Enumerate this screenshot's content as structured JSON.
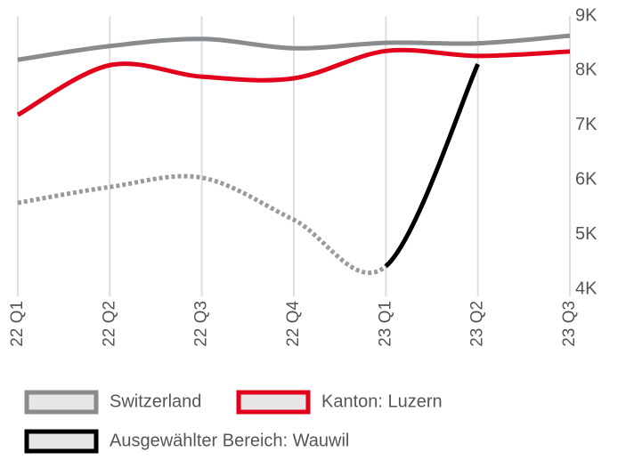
{
  "chart_data": {
    "type": "line",
    "categories": [
      "22 Q1",
      "22 Q2",
      "22 Q3",
      "22 Q4",
      "23 Q1",
      "23 Q2",
      "23 Q3"
    ],
    "series": [
      {
        "name": "Switzerland",
        "color": "#898c8f",
        "values": [
          8200,
          8450,
          8580,
          8410,
          8510,
          8500,
          8640
        ]
      },
      {
        "name": "Kanton: Luzern",
        "color": "#e2001a",
        "values": [
          7190,
          8100,
          7890,
          7860,
          8360,
          8270,
          8350
        ]
      },
      {
        "name": "Ausgewählter Bereich: Wauwil",
        "color": "#000000",
        "values": [
          5580,
          5870,
          6040,
          5270,
          4420,
          8120,
          null
        ],
        "segment_styles": [
          "dotted",
          "dotted",
          "dotted",
          "dotted",
          "solid",
          null
        ],
        "dotted_color": "#9a9a9a"
      }
    ],
    "ylim": [
      4000,
      9000
    ],
    "yticks": [
      {
        "value": 4000,
        "label": "4K"
      },
      {
        "value": 5000,
        "label": "5K"
      },
      {
        "value": 6000,
        "label": "6K"
      },
      {
        "value": 7000,
        "label": "7K"
      },
      {
        "value": 8000,
        "label": "8K"
      },
      {
        "value": 9000,
        "label": "9K"
      }
    ],
    "y_axis_side": "right",
    "grid": "x"
  }
}
